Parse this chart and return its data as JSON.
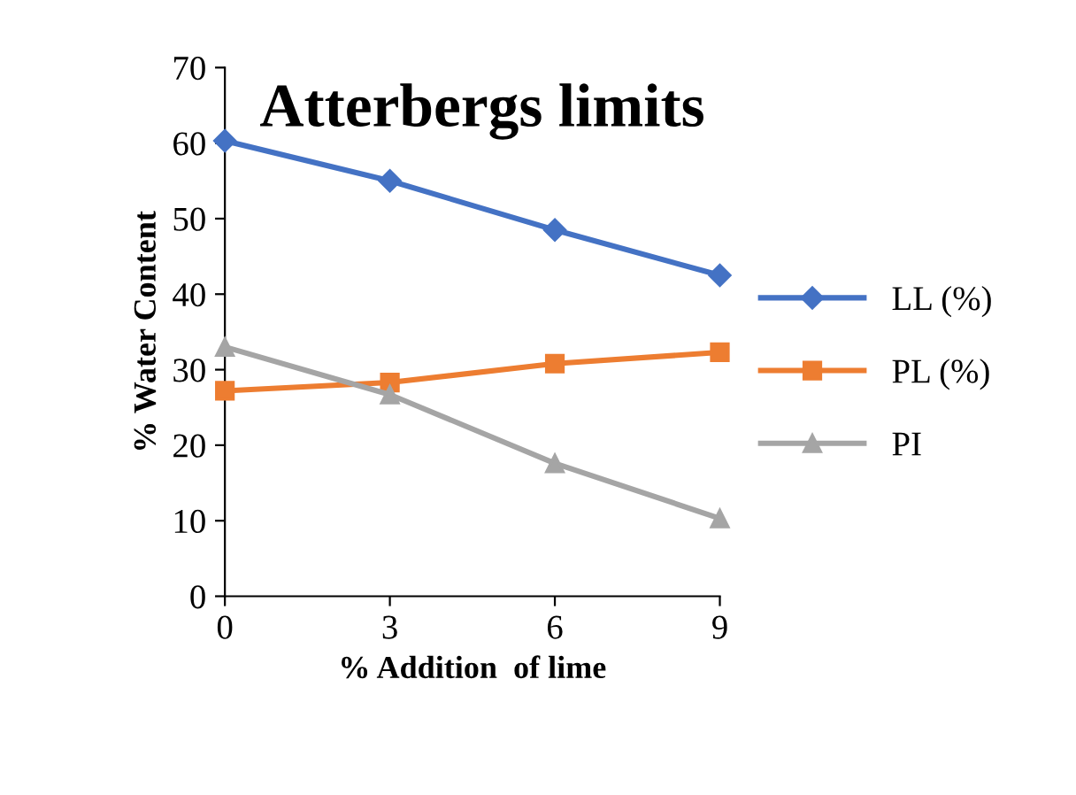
{
  "chart_data": {
    "type": "line",
    "title": "Atterbergs limits",
    "xlabel": "% Addition  of lime",
    "ylabel": "% Water Content",
    "x": [
      0,
      3,
      6,
      9
    ],
    "xlim": [
      0,
      9
    ],
    "xticks": [
      0,
      3,
      6,
      9
    ],
    "ylim": [
      0,
      70
    ],
    "yticks": [
      0,
      10,
      20,
      30,
      40,
      50,
      60,
      70
    ],
    "series": [
      {
        "name": "LL (%)",
        "color": "#4472c4",
        "marker": "diamond",
        "values": [
          60.3,
          55,
          48.5,
          42.5
        ]
      },
      {
        "name": "PL (%)",
        "color": "#ed7d31",
        "marker": "square",
        "values": [
          27.2,
          28.3,
          30.8,
          32.3
        ]
      },
      {
        "name": "PI",
        "color": "#a5a5a5",
        "marker": "triangle",
        "values": [
          33,
          26.7,
          17.6,
          10.3
        ]
      }
    ],
    "grid": false,
    "legend": "right",
    "line_style": "solid"
  }
}
